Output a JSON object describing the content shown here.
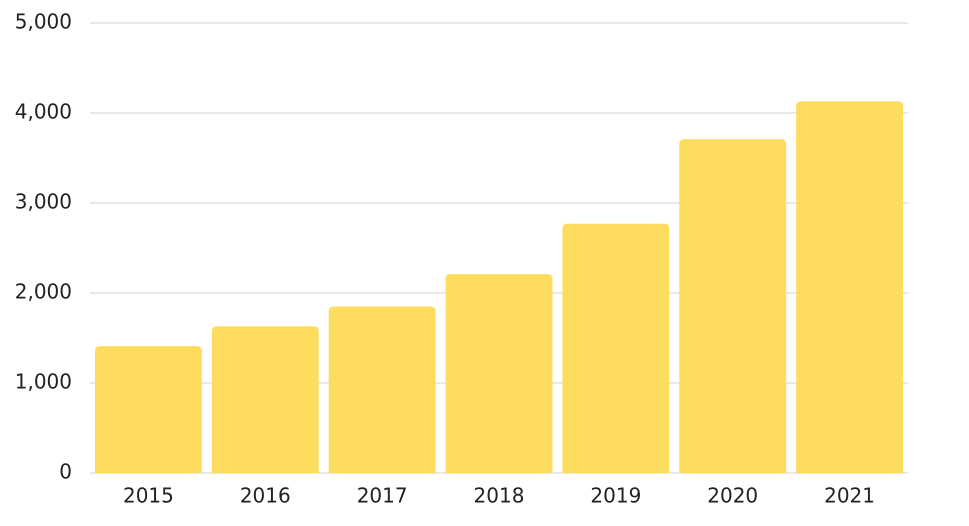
{
  "chart_data": {
    "type": "bar",
    "categories": [
      "2015",
      "2016",
      "2017",
      "2018",
      "2019",
      "2020",
      "2021"
    ],
    "values": [
      1410,
      1630,
      1850,
      2210,
      2770,
      3710,
      4130
    ],
    "color": "#fddc5e",
    "ylim": [
      0,
      5000
    ],
    "yticks": [
      0,
      {
        "value": 1000,
        "label": "1,000"
      },
      {
        "value": 2000,
        "label": "2,000"
      },
      {
        "value": 3000,
        "label": "3,000"
      },
      {
        "value": 4000,
        "label": "4,000"
      },
      {
        "value": 5000,
        "label": "5,000"
      }
    ],
    "grid": true
  }
}
